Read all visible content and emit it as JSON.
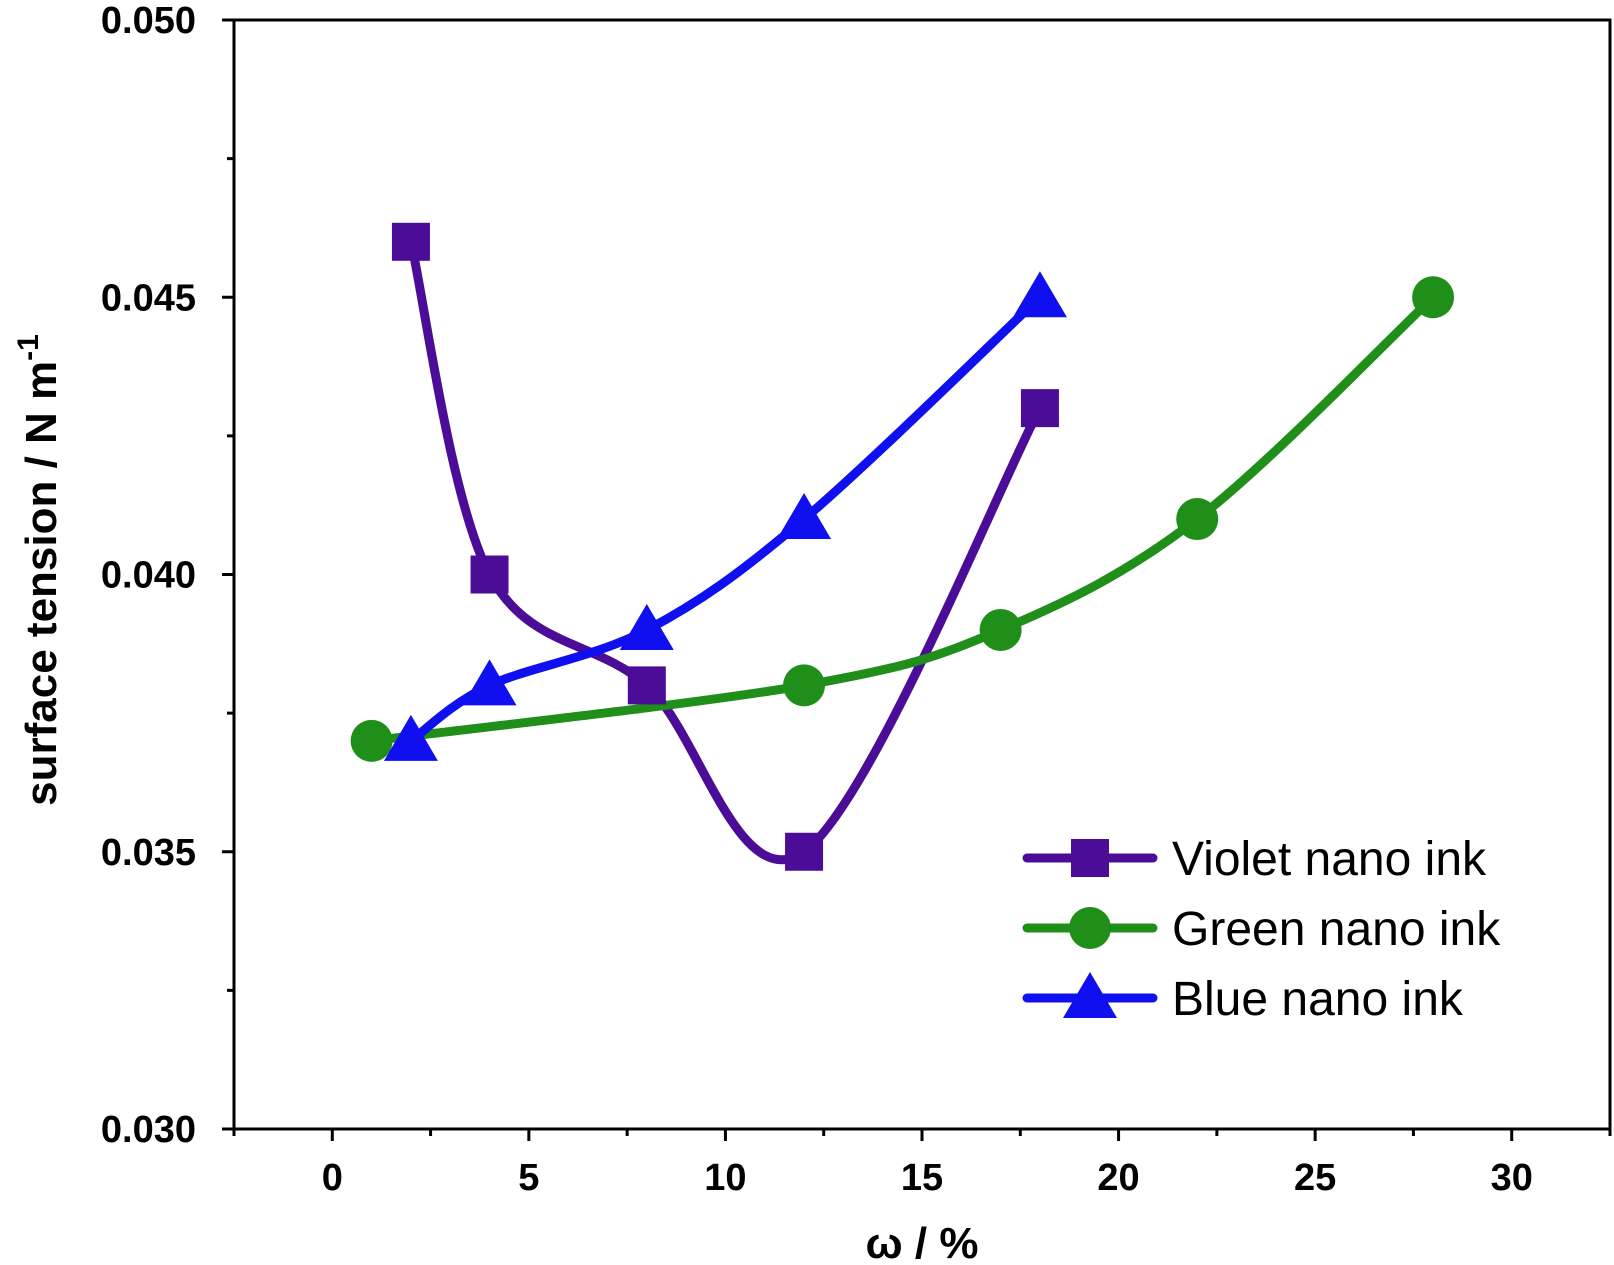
{
  "chart_data": {
    "type": "line",
    "title": "",
    "xlabel": "ω / %",
    "ylabel": "surface tension / N m",
    "ylabel_superscript": "-1",
    "xlim": [
      -2.5,
      32.5
    ],
    "ylim": [
      0.03,
      0.05
    ],
    "xticks": [
      0,
      5,
      10,
      15,
      20,
      25,
      30
    ],
    "yticks": [
      0.03,
      0.035,
      0.04,
      0.045,
      0.05
    ],
    "xtick_labels": [
      "0",
      "5",
      "10",
      "15",
      "20",
      "25",
      "30"
    ],
    "ytick_labels": [
      "0.030",
      "0.035",
      "0.040",
      "0.045",
      "0.050"
    ],
    "grid": false,
    "legend_position": "bottom-right",
    "series": [
      {
        "name": "Violet nano ink",
        "color": "#4b0c97",
        "marker": "square",
        "x": [
          2,
          4,
          8,
          12,
          18
        ],
        "y": [
          0.046,
          0.04,
          0.038,
          0.035,
          0.043
        ]
      },
      {
        "name": "Green nano ink",
        "color": "#1f8f1a",
        "marker": "circle",
        "x": [
          1,
          12,
          17,
          22,
          28
        ],
        "y": [
          0.037,
          0.038,
          0.039,
          0.041,
          0.045
        ]
      },
      {
        "name": "Blue nano ink",
        "color": "#0f0fef",
        "marker": "triangle",
        "x": [
          2,
          4,
          8,
          12,
          18
        ],
        "y": [
          0.037,
          0.038,
          0.039,
          0.041,
          0.045
        ]
      }
    ]
  }
}
